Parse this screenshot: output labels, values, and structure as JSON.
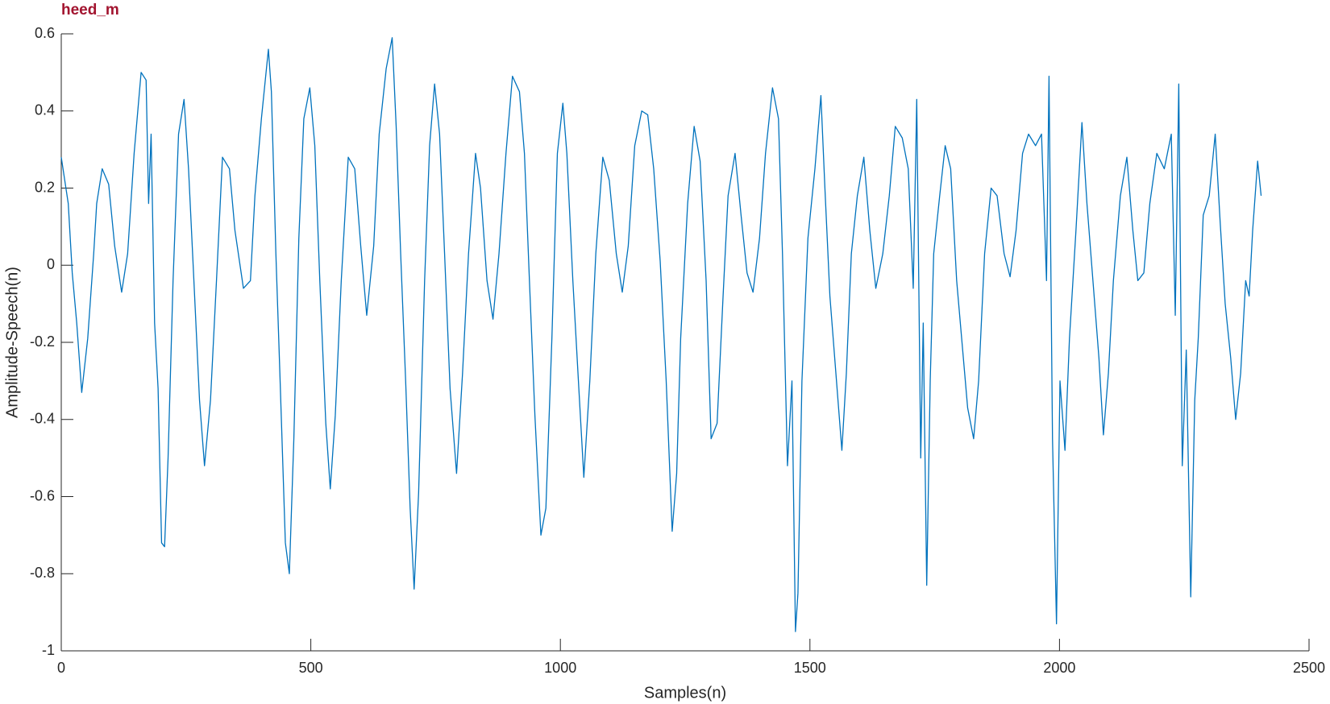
{
  "chart_data": {
    "type": "line",
    "title": "heed_m",
    "title_color": "#a2142f",
    "x_label": "Samples(n)",
    "y_label": "Amplitude-Speech(n)",
    "xlim": [
      0,
      2500
    ],
    "xticks": [
      0,
      500,
      1000,
      1500,
      2000,
      2500
    ],
    "ylim": [
      -1,
      0.6
    ],
    "yticks": [
      -1,
      -0.8,
      -0.6,
      -0.4,
      -0.2,
      0,
      0.2,
      0.4,
      0.6
    ],
    "grid": false,
    "series": [
      {
        "color": "#0072bd",
        "x": [
          0,
          14,
          22,
          31,
          41,
          53,
          65,
          71,
          82,
          95,
          107,
          121,
          133,
          146,
          160,
          170,
          175,
          180,
          187,
          194,
          201,
          207,
          214,
          224,
          235,
          246,
          255,
          265,
          277,
          287,
          299,
          311,
          323,
          337,
          348,
          365,
          379,
          388,
          401,
          415,
          421,
          430,
          438,
          449,
          457,
          466,
          476,
          486,
          498,
          508,
          518,
          530,
          539,
          549,
          561,
          575,
          588,
          600,
          612,
          626,
          637,
          651,
          663,
          671,
          680,
          690,
          699,
          707,
          716,
          728,
          738,
          748,
          758,
          768,
          779,
          792,
          804,
          816,
          830,
          840,
          853,
          865,
          877,
          891,
          904,
          918,
          928,
          938,
          949,
          961,
          971,
          983,
          994,
          1005,
          1013,
          1025,
          1037,
          1047,
          1059,
          1071,
          1085,
          1098,
          1112,
          1124,
          1136,
          1149,
          1163,
          1175,
          1187,
          1200,
          1212,
          1224,
          1233,
          1241,
          1255,
          1268,
          1280,
          1292,
          1302,
          1314,
          1326,
          1336,
          1350,
          1362,
          1374,
          1386,
          1399,
          1411,
          1425,
          1437,
          1445,
          1455,
          1464,
          1471,
          1476,
          1484,
          1496,
          1510,
          1522,
          1530,
          1540,
          1552,
          1564,
          1573,
          1583,
          1595,
          1608,
          1620,
          1632,
          1646,
          1659,
          1671,
          1685,
          1697,
          1707,
          1714,
          1722,
          1727,
          1734,
          1741,
          1748,
          1760,
          1771,
          1782,
          1794,
          1804,
          1816,
          1828,
          1838,
          1850,
          1863,
          1875,
          1889,
          1901,
          1913,
          1926,
          1938,
          1952,
          1964,
          1974,
          1979,
          1986,
          1994,
          2001,
          2011,
          2020,
          2033,
          2045,
          2055,
          2067,
          2079,
          2088,
          2098,
          2108,
          2122,
          2135,
          2147,
          2157,
          2169,
          2181,
          2195,
          2210,
          2224,
          2232,
          2239,
          2246,
          2254,
          2263,
          2271,
          2278,
          2288,
          2300,
          2312,
          2322,
          2332,
          2343,
          2353,
          2363,
          2373,
          2380,
          2387,
          2397,
          2404
        ],
        "values": [
          0.28,
          0.16,
          -0.02,
          -0.15,
          -0.33,
          -0.19,
          0.03,
          0.16,
          0.25,
          0.21,
          0.05,
          -0.07,
          0.03,
          0.29,
          0.5,
          0.48,
          0.16,
          0.34,
          -0.15,
          -0.32,
          -0.72,
          -0.73,
          -0.5,
          -0.04,
          0.34,
          0.43,
          0.25,
          -0.02,
          -0.35,
          -0.52,
          -0.35,
          -0.04,
          0.28,
          0.25,
          0.09,
          -0.06,
          -0.04,
          0.18,
          0.38,
          0.56,
          0.45,
          0.03,
          -0.28,
          -0.72,
          -0.8,
          -0.45,
          0.07,
          0.38,
          0.46,
          0.31,
          -0.04,
          -0.41,
          -0.58,
          -0.39,
          -0.04,
          0.28,
          0.25,
          0.05,
          -0.13,
          0.05,
          0.34,
          0.51,
          0.59,
          0.36,
          0.03,
          -0.3,
          -0.63,
          -0.84,
          -0.59,
          -0.04,
          0.31,
          0.47,
          0.34,
          0.03,
          -0.32,
          -0.54,
          -0.28,
          0.03,
          0.29,
          0.2,
          -0.04,
          -0.14,
          0.03,
          0.29,
          0.49,
          0.45,
          0.29,
          -0.04,
          -0.39,
          -0.7,
          -0.63,
          -0.19,
          0.29,
          0.42,
          0.29,
          -0.04,
          -0.32,
          -0.55,
          -0.3,
          0.03,
          0.28,
          0.22,
          0.03,
          -0.07,
          0.05,
          0.31,
          0.4,
          0.39,
          0.25,
          0.01,
          -0.3,
          -0.69,
          -0.54,
          -0.19,
          0.16,
          0.36,
          0.27,
          -0.04,
          -0.45,
          -0.41,
          -0.08,
          0.18,
          0.29,
          0.13,
          -0.02,
          -0.07,
          0.07,
          0.29,
          0.46,
          0.38,
          0.03,
          -0.52,
          -0.3,
          -0.95,
          -0.85,
          -0.3,
          0.07,
          0.25,
          0.44,
          0.2,
          -0.08,
          -0.28,
          -0.48,
          -0.28,
          0.03,
          0.18,
          0.28,
          0.09,
          -0.06,
          0.03,
          0.18,
          0.36,
          0.33,
          0.25,
          -0.06,
          0.43,
          -0.5,
          -0.15,
          -0.83,
          -0.3,
          0.03,
          0.18,
          0.31,
          0.25,
          -0.04,
          -0.19,
          -0.37,
          -0.45,
          -0.3,
          0.03,
          0.2,
          0.18,
          0.03,
          -0.03,
          0.09,
          0.29,
          0.34,
          0.31,
          0.34,
          -0.04,
          0.49,
          -0.45,
          -0.93,
          -0.3,
          -0.48,
          -0.19,
          0.09,
          0.37,
          0.16,
          -0.04,
          -0.24,
          -0.44,
          -0.28,
          -0.04,
          0.18,
          0.28,
          0.09,
          -0.04,
          -0.02,
          0.16,
          0.29,
          0.25,
          0.34,
          -0.13,
          0.47,
          -0.52,
          -0.22,
          -0.86,
          -0.35,
          -0.19,
          0.13,
          0.18,
          0.34,
          0.11,
          -0.1,
          -0.24,
          -0.4,
          -0.28,
          -0.04,
          -0.08,
          0.09,
          0.27,
          0.18
        ]
      }
    ]
  }
}
